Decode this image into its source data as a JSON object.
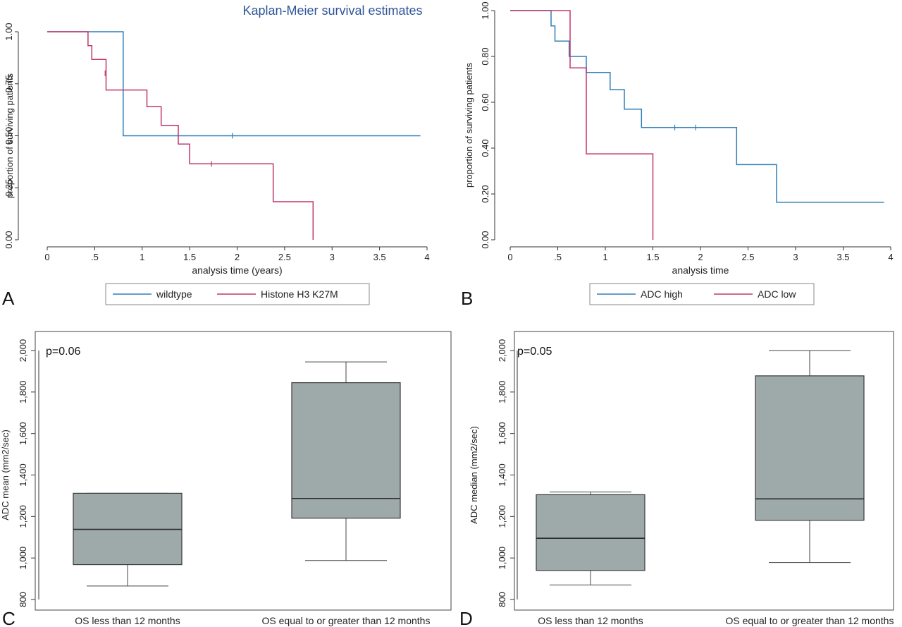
{
  "figure_title": "Kaplan-Meier survival estimates",
  "colors": {
    "blue": "#2f7fb8",
    "red": "#c0366e",
    "axis": "#333333",
    "box_fill": "#9eaaa9",
    "legend_border": "#8a8a8a"
  },
  "chart_data": [
    {
      "panel": "A",
      "type": "line",
      "subtype": "kaplan-meier-step",
      "title": "Kaplan-Meier survival estimates",
      "xlabel": "analysis time (years)",
      "ylabel": "proportion of surviving patients",
      "xlim": [
        0,
        4
      ],
      "ylim": [
        0,
        1
      ],
      "x_ticks": [
        0,
        0.5,
        1,
        1.5,
        2,
        2.5,
        3,
        3.5,
        4
      ],
      "x_tick_labels": [
        "0",
        ".5",
        "1",
        "1.5",
        "2",
        "2.5",
        "3",
        "3.5",
        "4"
      ],
      "y_ticks": [
        0,
        0.25,
        0.5,
        0.75,
        1
      ],
      "y_tick_labels": [
        "0.00",
        "0.25",
        "0.50",
        "0.75",
        "1.00"
      ],
      "grid": false,
      "legend_position": "bottom",
      "series": [
        {
          "name": "wildtype",
          "color": "#2f7fb8",
          "points": [
            [
              0,
              1.0
            ],
            [
              0.8,
              1.0
            ],
            [
              0.8,
              0.5
            ],
            [
              3.93,
              0.5
            ]
          ],
          "censored": [
            [
              1.95,
              0.5
            ]
          ]
        },
        {
          "name": "Histone H3 K27M",
          "color": "#c0366e",
          "points": [
            [
              0,
              1.0
            ],
            [
              0.43,
              1.0
            ],
            [
              0.43,
              0.933
            ],
            [
              0.47,
              0.933
            ],
            [
              0.47,
              0.867
            ],
            [
              0.62,
              0.867
            ],
            [
              0.62,
              0.72
            ],
            [
              1.05,
              0.72
            ],
            [
              1.05,
              0.64
            ],
            [
              1.2,
              0.64
            ],
            [
              1.2,
              0.55
            ],
            [
              1.38,
              0.55
            ],
            [
              1.38,
              0.46
            ],
            [
              1.5,
              0.46
            ],
            [
              1.5,
              0.365
            ],
            [
              2.38,
              0.365
            ],
            [
              2.38,
              0.183
            ],
            [
              2.8,
              0.183
            ],
            [
              2.8,
              0.0
            ]
          ],
          "censored": [
            [
              0.61,
              0.8
            ],
            [
              1.73,
              0.365
            ]
          ]
        }
      ]
    },
    {
      "panel": "B",
      "type": "line",
      "subtype": "kaplan-meier-step",
      "title": "",
      "xlabel": "analysis time",
      "ylabel": "proportion of surviving patients",
      "xlim": [
        0,
        4
      ],
      "ylim": [
        0,
        1
      ],
      "x_ticks": [
        0,
        0.5,
        1,
        1.5,
        2,
        2.5,
        3,
        3.5,
        4
      ],
      "x_tick_labels": [
        "0",
        ".5",
        "1",
        "1.5",
        "2",
        "2.5",
        "3",
        "3.5",
        "4"
      ],
      "y_ticks": [
        0,
        0.2,
        0.4,
        0.6,
        0.8,
        1
      ],
      "y_tick_labels": [
        "0.00",
        "0.20",
        "0.40",
        "0.60",
        "0.80",
        "1.00"
      ],
      "grid": false,
      "legend_position": "bottom",
      "series": [
        {
          "name": "ADC high",
          "color": "#2f7fb8",
          "points": [
            [
              0,
              1.0
            ],
            [
              0.43,
              1.0
            ],
            [
              0.43,
              0.933
            ],
            [
              0.47,
              0.933
            ],
            [
              0.47,
              0.867
            ],
            [
              0.62,
              0.867
            ],
            [
              0.62,
              0.8
            ],
            [
              0.8,
              0.8
            ],
            [
              0.8,
              0.73
            ],
            [
              1.05,
              0.73
            ],
            [
              1.05,
              0.655
            ],
            [
              1.2,
              0.655
            ],
            [
              1.2,
              0.57
            ],
            [
              1.38,
              0.57
            ],
            [
              1.38,
              0.49
            ],
            [
              2.38,
              0.49
            ],
            [
              2.38,
              0.328
            ],
            [
              2.8,
              0.328
            ],
            [
              2.8,
              0.164
            ],
            [
              3.93,
              0.164
            ]
          ],
          "censored": [
            [
              1.73,
              0.49
            ],
            [
              1.95,
              0.49
            ]
          ]
        },
        {
          "name": "ADC low",
          "color": "#c0366e",
          "points": [
            [
              0,
              1.0
            ],
            [
              0.63,
              1.0
            ],
            [
              0.63,
              0.75
            ],
            [
              0.8,
              0.75
            ],
            [
              0.8,
              0.375
            ],
            [
              1.5,
              0.375
            ],
            [
              1.5,
              0.0
            ]
          ],
          "censored": []
        }
      ]
    },
    {
      "panel": "C",
      "type": "box",
      "title": "",
      "annotation": "p=0.06",
      "xlabel": "",
      "ylabel": "ADC mean (mm2/sec)",
      "ylim": [
        800,
        2000
      ],
      "y_ticks": [
        800,
        1000,
        1200,
        1400,
        1600,
        1800,
        2000
      ],
      "y_tick_labels": [
        "800",
        "1,000",
        "1,200",
        "1,400",
        "1,600",
        "1,800",
        "2,000"
      ],
      "grid": false,
      "categories": [
        "OS less than 12 months",
        "OS equal to or greater than 12 months"
      ],
      "boxes": [
        {
          "min": 865,
          "q1": 968,
          "median": 1138,
          "q3": 1312,
          "max": 1312
        },
        {
          "min": 988,
          "q1": 1192,
          "median": 1287,
          "q3": 1845,
          "max": 1945
        }
      ]
    },
    {
      "panel": "D",
      "type": "box",
      "title": "",
      "annotation": "p=0.05",
      "xlabel": "",
      "ylabel": "ADC median (mm2/sec)",
      "ylim": [
        800,
        2000
      ],
      "y_ticks": [
        800,
        1000,
        1200,
        1400,
        1600,
        1800,
        2000
      ],
      "y_tick_labels": [
        "800",
        "1,000",
        "1,200",
        "1,400",
        "1,600",
        "1,800",
        "2,000"
      ],
      "grid": false,
      "categories": [
        "OS less than 12 months",
        "OS equal to or greater than 12 months"
      ],
      "boxes": [
        {
          "min": 870,
          "q1": 940,
          "median": 1095,
          "q3": 1305,
          "max": 1318
        },
        {
          "min": 978,
          "q1": 1182,
          "median": 1285,
          "q3": 1878,
          "max": 2000
        }
      ]
    }
  ]
}
